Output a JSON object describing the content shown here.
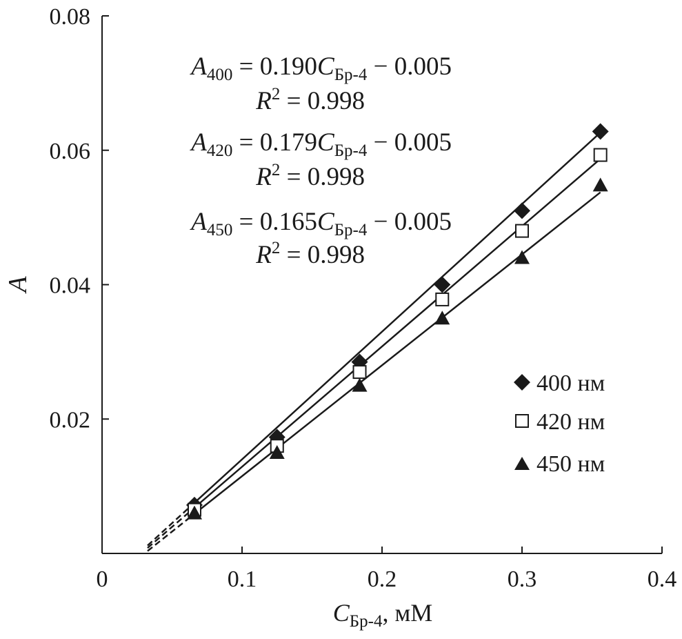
{
  "chart_data": {
    "type": "scatter",
    "title": "",
    "xlabel": {
      "main": "C",
      "sub": "Бр-4",
      "rest": ", мМ"
    },
    "ylabel": "A",
    "xlim": [
      0,
      0.4
    ],
    "ylim": [
      0,
      0.08
    ],
    "xticks": [
      0,
      0.1,
      0.2,
      0.3,
      0.4
    ],
    "xtick_labels": [
      "0",
      "0.1",
      "0.2",
      "0.3",
      "0.4"
    ],
    "yticks": [
      0.02,
      0.04,
      0.06,
      0.08
    ],
    "ytick_labels": [
      "0.02",
      "0.04",
      "0.06",
      "0.08"
    ],
    "grid": false,
    "legend_position": "right",
    "series": [
      {
        "name": "400 нм",
        "marker": "diamond-filled",
        "x": [
          0.066,
          0.125,
          0.184,
          0.243,
          0.3,
          0.356
        ],
        "y": [
          0.0072,
          0.0173,
          0.0285,
          0.04,
          0.051,
          0.0628
        ],
        "fit": {
          "slope": 0.19,
          "intercept": -0.005,
          "r2": 0.998
        },
        "fit_line": {
          "x0": 0.0325,
          "x1": 0.356,
          "dashed_until": 0.066
        }
      },
      {
        "name": "420 нм",
        "marker": "square-open",
        "x": [
          0.066,
          0.125,
          0.184,
          0.243,
          0.3,
          0.356
        ],
        "y": [
          0.0065,
          0.016,
          0.027,
          0.0378,
          0.048,
          0.0593
        ],
        "fit": {
          "slope": 0.179,
          "intercept": -0.005,
          "r2": 0.998
        },
        "fit_line": {
          "x0": 0.0325,
          "x1": 0.356,
          "dashed_until": 0.066
        }
      },
      {
        "name": "450 нм",
        "marker": "triangle-filled",
        "x": [
          0.066,
          0.125,
          0.184,
          0.243,
          0.3,
          0.356
        ],
        "y": [
          0.006,
          0.015,
          0.025,
          0.035,
          0.044,
          0.0548
        ],
        "fit": {
          "slope": 0.165,
          "intercept": -0.005,
          "r2": 0.998
        },
        "fit_line": {
          "x0": 0.0325,
          "x1": 0.356,
          "dashed_until": 0.066
        }
      }
    ],
    "annotations": [
      {
        "lhs": "A",
        "lhs_sub": "400",
        "rhs": " = 0.190",
        "var": "C",
        "var_sub": "Бр-4",
        "tail": " − 0.005",
        "r2_label": "R",
        "r2_sup": "2",
        "r2_value": " = 0.998"
      },
      {
        "lhs": "A",
        "lhs_sub": "420",
        "rhs": " = 0.179",
        "var": "C",
        "var_sub": "Бр-4",
        "tail": " − 0.005",
        "r2_label": "R",
        "r2_sup": "2",
        "r2_value": " = 0.998"
      },
      {
        "lhs": "A",
        "lhs_sub": "450",
        "rhs": " = 0.165",
        "var": "C",
        "var_sub": "Бр-4",
        "tail": " − 0.005",
        "r2_label": "R",
        "r2_sup": "2",
        "r2_value": " = 0.998"
      }
    ],
    "colors": {
      "ink": "#1a1a1a",
      "background": "#ffffff"
    }
  }
}
